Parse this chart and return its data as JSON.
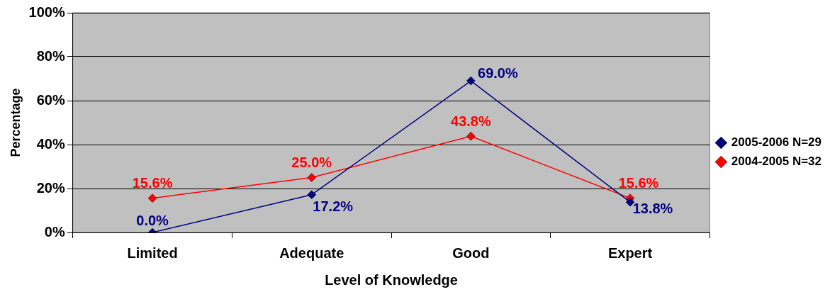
{
  "chart_data": {
    "type": "line",
    "xlabel": "Level of Knowledge",
    "ylabel": "Percentage",
    "categories": [
      "Limited",
      "Adequate",
      "Good",
      "Expert"
    ],
    "series": [
      {
        "name": "2005-2006 N=29",
        "color": "#000080",
        "values": [
          0.0,
          17.2,
          69.0,
          13.8
        ],
        "value_labels": [
          "0.0%",
          "17.2%",
          "69.0%",
          "13.8%"
        ]
      },
      {
        "name": "2004-2005 N=32",
        "color": "#ff0000",
        "values": [
          15.6,
          25.0,
          43.8,
          15.6
        ],
        "value_labels": [
          "15.6%",
          "25.0%",
          "43.8%",
          "15.6%"
        ]
      }
    ],
    "ylim": [
      0,
      100
    ],
    "yticks": [
      {
        "value": 0,
        "label": "0%"
      },
      {
        "value": 20,
        "label": "20%"
      },
      {
        "value": 40,
        "label": "40%"
      },
      {
        "value": 60,
        "label": "60%"
      },
      {
        "value": 80,
        "label": "80%"
      },
      {
        "value": 100,
        "label": "100%"
      }
    ],
    "grid": "y",
    "legend": "right",
    "marker": "diamond",
    "line_style": "solid"
  }
}
